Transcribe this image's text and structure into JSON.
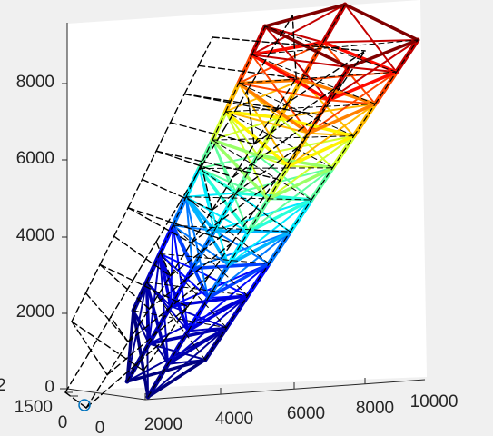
{
  "chart_data": {
    "type": "3d-line",
    "title": "",
    "xlabel": "",
    "ylabel": "",
    "zlabel": "",
    "x_ticks": [
      "0",
      "2000",
      "4000",
      "6000",
      "8000",
      "10000"
    ],
    "y_ticks": [
      "0",
      "1500"
    ],
    "y_tick_partial": "2",
    "z_ticks": [
      "0",
      "2000",
      "4000",
      "6000",
      "8000"
    ],
    "x_range": [
      0,
      10000
    ],
    "z_range": [
      0,
      9000
    ],
    "colormap": "jet",
    "colors": {
      "background": "#f0f0f0",
      "axes_face": "#ffffff",
      "axis": "#262626",
      "undeformed_lines": "#000000",
      "origin_marker": "#0072bd"
    },
    "series": [
      {
        "style": "colored-solid",
        "depicts": "deformed truss, colored by displacement magnitude",
        "levels": [
          {
            "z": 0,
            "value": 0.0
          },
          {
            "z": 2000,
            "value": 0.1
          },
          {
            "z": 4000,
            "value": 0.35
          },
          {
            "z": 6000,
            "value": 0.6
          },
          {
            "z": 8000,
            "value": 0.85
          },
          {
            "z": 9000,
            "value": 1.0
          }
        ]
      },
      {
        "style": "black-dashed",
        "depicts": "undeformed truss"
      }
    ]
  }
}
